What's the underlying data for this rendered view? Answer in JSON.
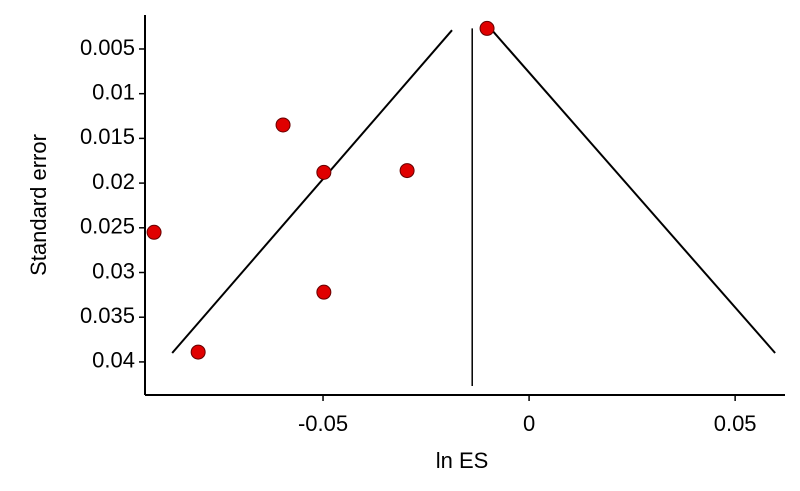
{
  "chart_data": {
    "type": "scatter",
    "x_label": "ln ES",
    "y_label": "Standard error",
    "x": [
      -0.0102,
      -0.0597,
      -0.0498,
      -0.0296,
      -0.091,
      -0.0498,
      -0.0803
    ],
    "y": [
      0.0027,
      0.0135,
      0.0188,
      0.0186,
      0.0255,
      0.0322,
      0.0389
    ],
    "color": "#e00000",
    "xlim": [
      -0.0932,
      0.0621
    ],
    "ylim": [
      0.0437,
      0.0012
    ],
    "y_inverted": true,
    "xticks": [
      -0.05,
      0,
      0.05
    ],
    "yticks": [
      0.005,
      0.01,
      0.015,
      0.02,
      0.025,
      0.03,
      0.035,
      0.04
    ],
    "grid": false,
    "lines": [
      {
        "x": [
          -0.0866,
          -0.0187
        ],
        "y": [
          0.039,
          0.0029
        ]
      },
      {
        "x": [
          -0.009,
          0.0597
        ],
        "y": [
          0.0029,
          0.039
        ]
      },
      {
        "x": [
          -0.0138,
          -0.0138
        ],
        "y": [
          0.0027,
          0.0427
        ]
      }
    ],
    "line_color": "#000000"
  }
}
